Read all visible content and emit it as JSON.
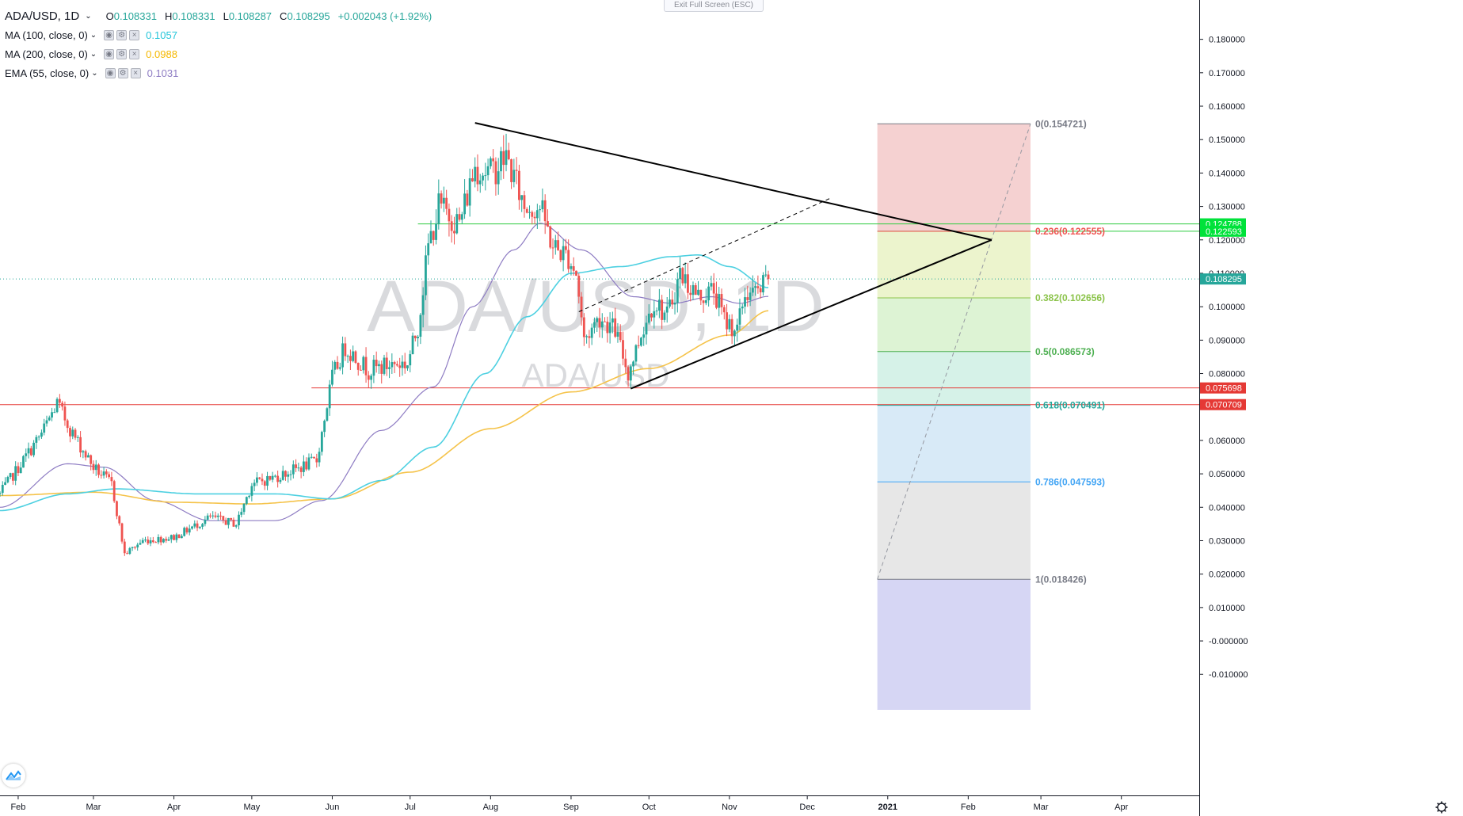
{
  "legend": {
    "symbol": "ADA/USD, 1D",
    "ohlc": [
      {
        "k": "O",
        "v": "0.108331"
      },
      {
        "k": "H",
        "v": "0.108331"
      },
      {
        "k": "L",
        "v": "0.108287"
      },
      {
        "k": "C",
        "v": "0.108295"
      }
    ],
    "change": "+0.002043 (+1.92%)",
    "indicators": [
      {
        "name": "MA (100, close, 0)",
        "value": "0.1057",
        "color": "#4dd0e1"
      },
      {
        "name": "MA (200, close, 0)",
        "value": "0.0988",
        "color": "#f5b800"
      },
      {
        "name": "EMA (55, close, 0)",
        "value": "0.1031",
        "color": "#8e7cc3"
      }
    ]
  },
  "exit_fullscreen_label": "Exit Full Screen (ESC)",
  "colors": {
    "up": "#26a69a",
    "down": "#ef5350",
    "ma100": "#4dd0e1",
    "ma200": "#f5c34a",
    "ema55": "#8e7cc3",
    "hline_green": "#2ecc40",
    "hline_red": "#e53935"
  },
  "chart_data": {
    "type": "candlestick",
    "title": "ADA/USD, 1D",
    "watermark": "ADA/USD, 1D",
    "watermark_sub": "ADA/USD",
    "x_ticks": [
      "Feb",
      "Mar",
      "Apr",
      "May",
      "Jun",
      "Jul",
      "Aug",
      "Sep",
      "Oct",
      "Nov",
      "Dec",
      "2021",
      "Feb",
      "Mar",
      "Apr"
    ],
    "y_ticks": [
      "0.180000",
      "0.170000",
      "0.160000",
      "0.150000",
      "0.140000",
      "0.130000",
      "0.120000",
      "0.110000",
      "0.100000",
      "0.090000",
      "0.080000",
      "0.070000",
      "0.060000",
      "0.050000",
      "0.040000",
      "0.030000",
      "0.020000",
      "0.010000",
      "-0.000000",
      "-0.010000"
    ],
    "y_range": [
      -0.0135,
      0.1875
    ],
    "x_range": [
      "2020-01-25",
      "2021-05-01"
    ],
    "price_anchors": [
      [
        "2020-01-25",
        0.044
      ],
      [
        "2020-02-10",
        0.062
      ],
      [
        "2020-02-16",
        0.071
      ],
      [
        "2020-02-22",
        0.062
      ],
      [
        "2020-03-01",
        0.052
      ],
      [
        "2020-03-08",
        0.047
      ],
      [
        "2020-03-13",
        0.026
      ],
      [
        "2020-03-20",
        0.03
      ],
      [
        "2020-04-01",
        0.031
      ],
      [
        "2020-04-15",
        0.037
      ],
      [
        "2020-04-25",
        0.035
      ],
      [
        "2020-05-01",
        0.047
      ],
      [
        "2020-05-10",
        0.049
      ],
      [
        "2020-05-20",
        0.052
      ],
      [
        "2020-05-26",
        0.054
      ],
      [
        "2020-06-01",
        0.079
      ],
      [
        "2020-06-06",
        0.088
      ],
      [
        "2020-06-15",
        0.081
      ],
      [
        "2020-06-25",
        0.083
      ],
      [
        "2020-06-30",
        0.083
      ],
      [
        "2020-07-04",
        0.094
      ],
      [
        "2020-07-08",
        0.118
      ],
      [
        "2020-07-12",
        0.13
      ],
      [
        "2020-07-20",
        0.125
      ],
      [
        "2020-07-26",
        0.142
      ],
      [
        "2020-08-01",
        0.14
      ],
      [
        "2020-08-07",
        0.145
      ],
      [
        "2020-08-14",
        0.13
      ],
      [
        "2020-08-20",
        0.13
      ],
      [
        "2020-08-25",
        0.118
      ],
      [
        "2020-08-31",
        0.115
      ],
      [
        "2020-09-03",
        0.11
      ],
      [
        "2020-09-06",
        0.09
      ],
      [
        "2020-09-12",
        0.097
      ],
      [
        "2020-09-18",
        0.093
      ],
      [
        "2020-09-23",
        0.08
      ],
      [
        "2020-09-28",
        0.092
      ],
      [
        "2020-10-03",
        0.102
      ],
      [
        "2020-10-08",
        0.097
      ],
      [
        "2020-10-13",
        0.11
      ],
      [
        "2020-10-20",
        0.103
      ],
      [
        "2020-10-26",
        0.105
      ],
      [
        "2020-10-30",
        0.096
      ],
      [
        "2020-11-04",
        0.093
      ],
      [
        "2020-11-07",
        0.104
      ],
      [
        "2020-11-12",
        0.104
      ],
      [
        "2020-11-16",
        0.108
      ]
    ],
    "moving_averages": {
      "ma100": [
        [
          "2020-01-25",
          0.039
        ],
        [
          "2020-02-20",
          0.044
        ],
        [
          "2020-03-10",
          0.0455
        ],
        [
          "2020-04-10",
          0.044
        ],
        [
          "2020-05-10",
          0.044
        ],
        [
          "2020-06-01",
          0.0425
        ],
        [
          "2020-06-20",
          0.048
        ],
        [
          "2020-07-10",
          0.058
        ],
        [
          "2020-07-30",
          0.08
        ],
        [
          "2020-08-15",
          0.097
        ],
        [
          "2020-09-01",
          0.11
        ],
        [
          "2020-09-20",
          0.112
        ],
        [
          "2020-10-10",
          0.115
        ],
        [
          "2020-10-20",
          0.1155
        ],
        [
          "2020-11-01",
          0.112
        ],
        [
          "2020-11-16",
          0.1057
        ]
      ],
      "ma200": [
        [
          "2020-01-25",
          0.0435
        ],
        [
          "2020-03-01",
          0.0445
        ],
        [
          "2020-04-01",
          0.0415
        ],
        [
          "2020-05-01",
          0.041
        ],
        [
          "2020-06-01",
          0.0425
        ],
        [
          "2020-07-01",
          0.0505
        ],
        [
          "2020-08-01",
          0.0635
        ],
        [
          "2020-09-01",
          0.0745
        ],
        [
          "2020-10-01",
          0.0815
        ],
        [
          "2020-11-01",
          0.0915
        ],
        [
          "2020-11-16",
          0.0988
        ]
      ],
      "ema55": [
        [
          "2020-01-25",
          0.04
        ],
        [
          "2020-02-20",
          0.053
        ],
        [
          "2020-03-05",
          0.052
        ],
        [
          "2020-03-25",
          0.042
        ],
        [
          "2020-04-15",
          0.036
        ],
        [
          "2020-05-10",
          0.036
        ],
        [
          "2020-05-28",
          0.042
        ],
        [
          "2020-06-20",
          0.063
        ],
        [
          "2020-07-10",
          0.076
        ],
        [
          "2020-07-25",
          0.1
        ],
        [
          "2020-08-10",
          0.117
        ],
        [
          "2020-08-20",
          0.125
        ],
        [
          "2020-09-05",
          0.117
        ],
        [
          "2020-09-25",
          0.103
        ],
        [
          "2020-10-10",
          0.101
        ],
        [
          "2020-10-25",
          0.103
        ],
        [
          "2020-11-05",
          0.101
        ],
        [
          "2020-11-16",
          0.1031
        ]
      ]
    },
    "horizontal_lines": [
      {
        "price": 0.124788,
        "label": "0.124788",
        "color": "#2ecc40"
      },
      {
        "price": 0.122593,
        "label": "0.122593",
        "color": "#2ecc40"
      },
      {
        "price": 0.075698,
        "label": "0.075698",
        "color": "#e53935"
      },
      {
        "price": 0.070709,
        "label": "0.070709",
        "color": "#e53935"
      },
      {
        "price": 0.108295,
        "label": "0.108295",
        "color": "#26a69a"
      }
    ],
    "triangle": {
      "top": [
        "2020-07-26",
        0.155
      ],
      "apex": [
        "2021-02-10",
        0.12
      ],
      "bottom": [
        "2020-09-24",
        0.0755
      ],
      "channel_start": [
        "2020-09-04",
        0.0985
      ],
      "channel_end": [
        "2020-12-10",
        0.1325
      ]
    },
    "fib": {
      "x_start": "2020-12-28",
      "x_end": "2021-02-25",
      "levels": [
        {
          "ratio": "0",
          "price": 0.154721,
          "label": "0(0.154721)",
          "color": "#787b86",
          "fill": "#f4cccc"
        },
        {
          "ratio": "0.236",
          "price": 0.122555,
          "label": "0.236(0.122555)",
          "color": "#ef5350",
          "fill": "#eaf3c8"
        },
        {
          "ratio": "0.382",
          "price": 0.102656,
          "label": "0.382(0.102656)",
          "color": "#8bc34a",
          "fill": "#d9f2cf"
        },
        {
          "ratio": "0.5",
          "price": 0.086573,
          "label": "0.5(0.086573)",
          "color": "#4caf50",
          "fill": "#d2f1e6"
        },
        {
          "ratio": "0.618",
          "price": 0.070491,
          "label": "0.618(0.070491)",
          "color": "#26a69a",
          "fill": "#d4e8f6"
        },
        {
          "ratio": "0.786",
          "price": 0.047593,
          "label": "0.786(0.047593)",
          "color": "#42a5f5",
          "fill": "#e4e4e4"
        },
        {
          "ratio": "1",
          "price": 0.018426,
          "label": "1(0.018426)",
          "color": "#787b86",
          "fill": "#d2d2f3"
        }
      ],
      "trend_from": [
        "2020-12-28",
        0.018426
      ],
      "trend_to": [
        "2021-02-25",
        0.154721
      ]
    }
  }
}
